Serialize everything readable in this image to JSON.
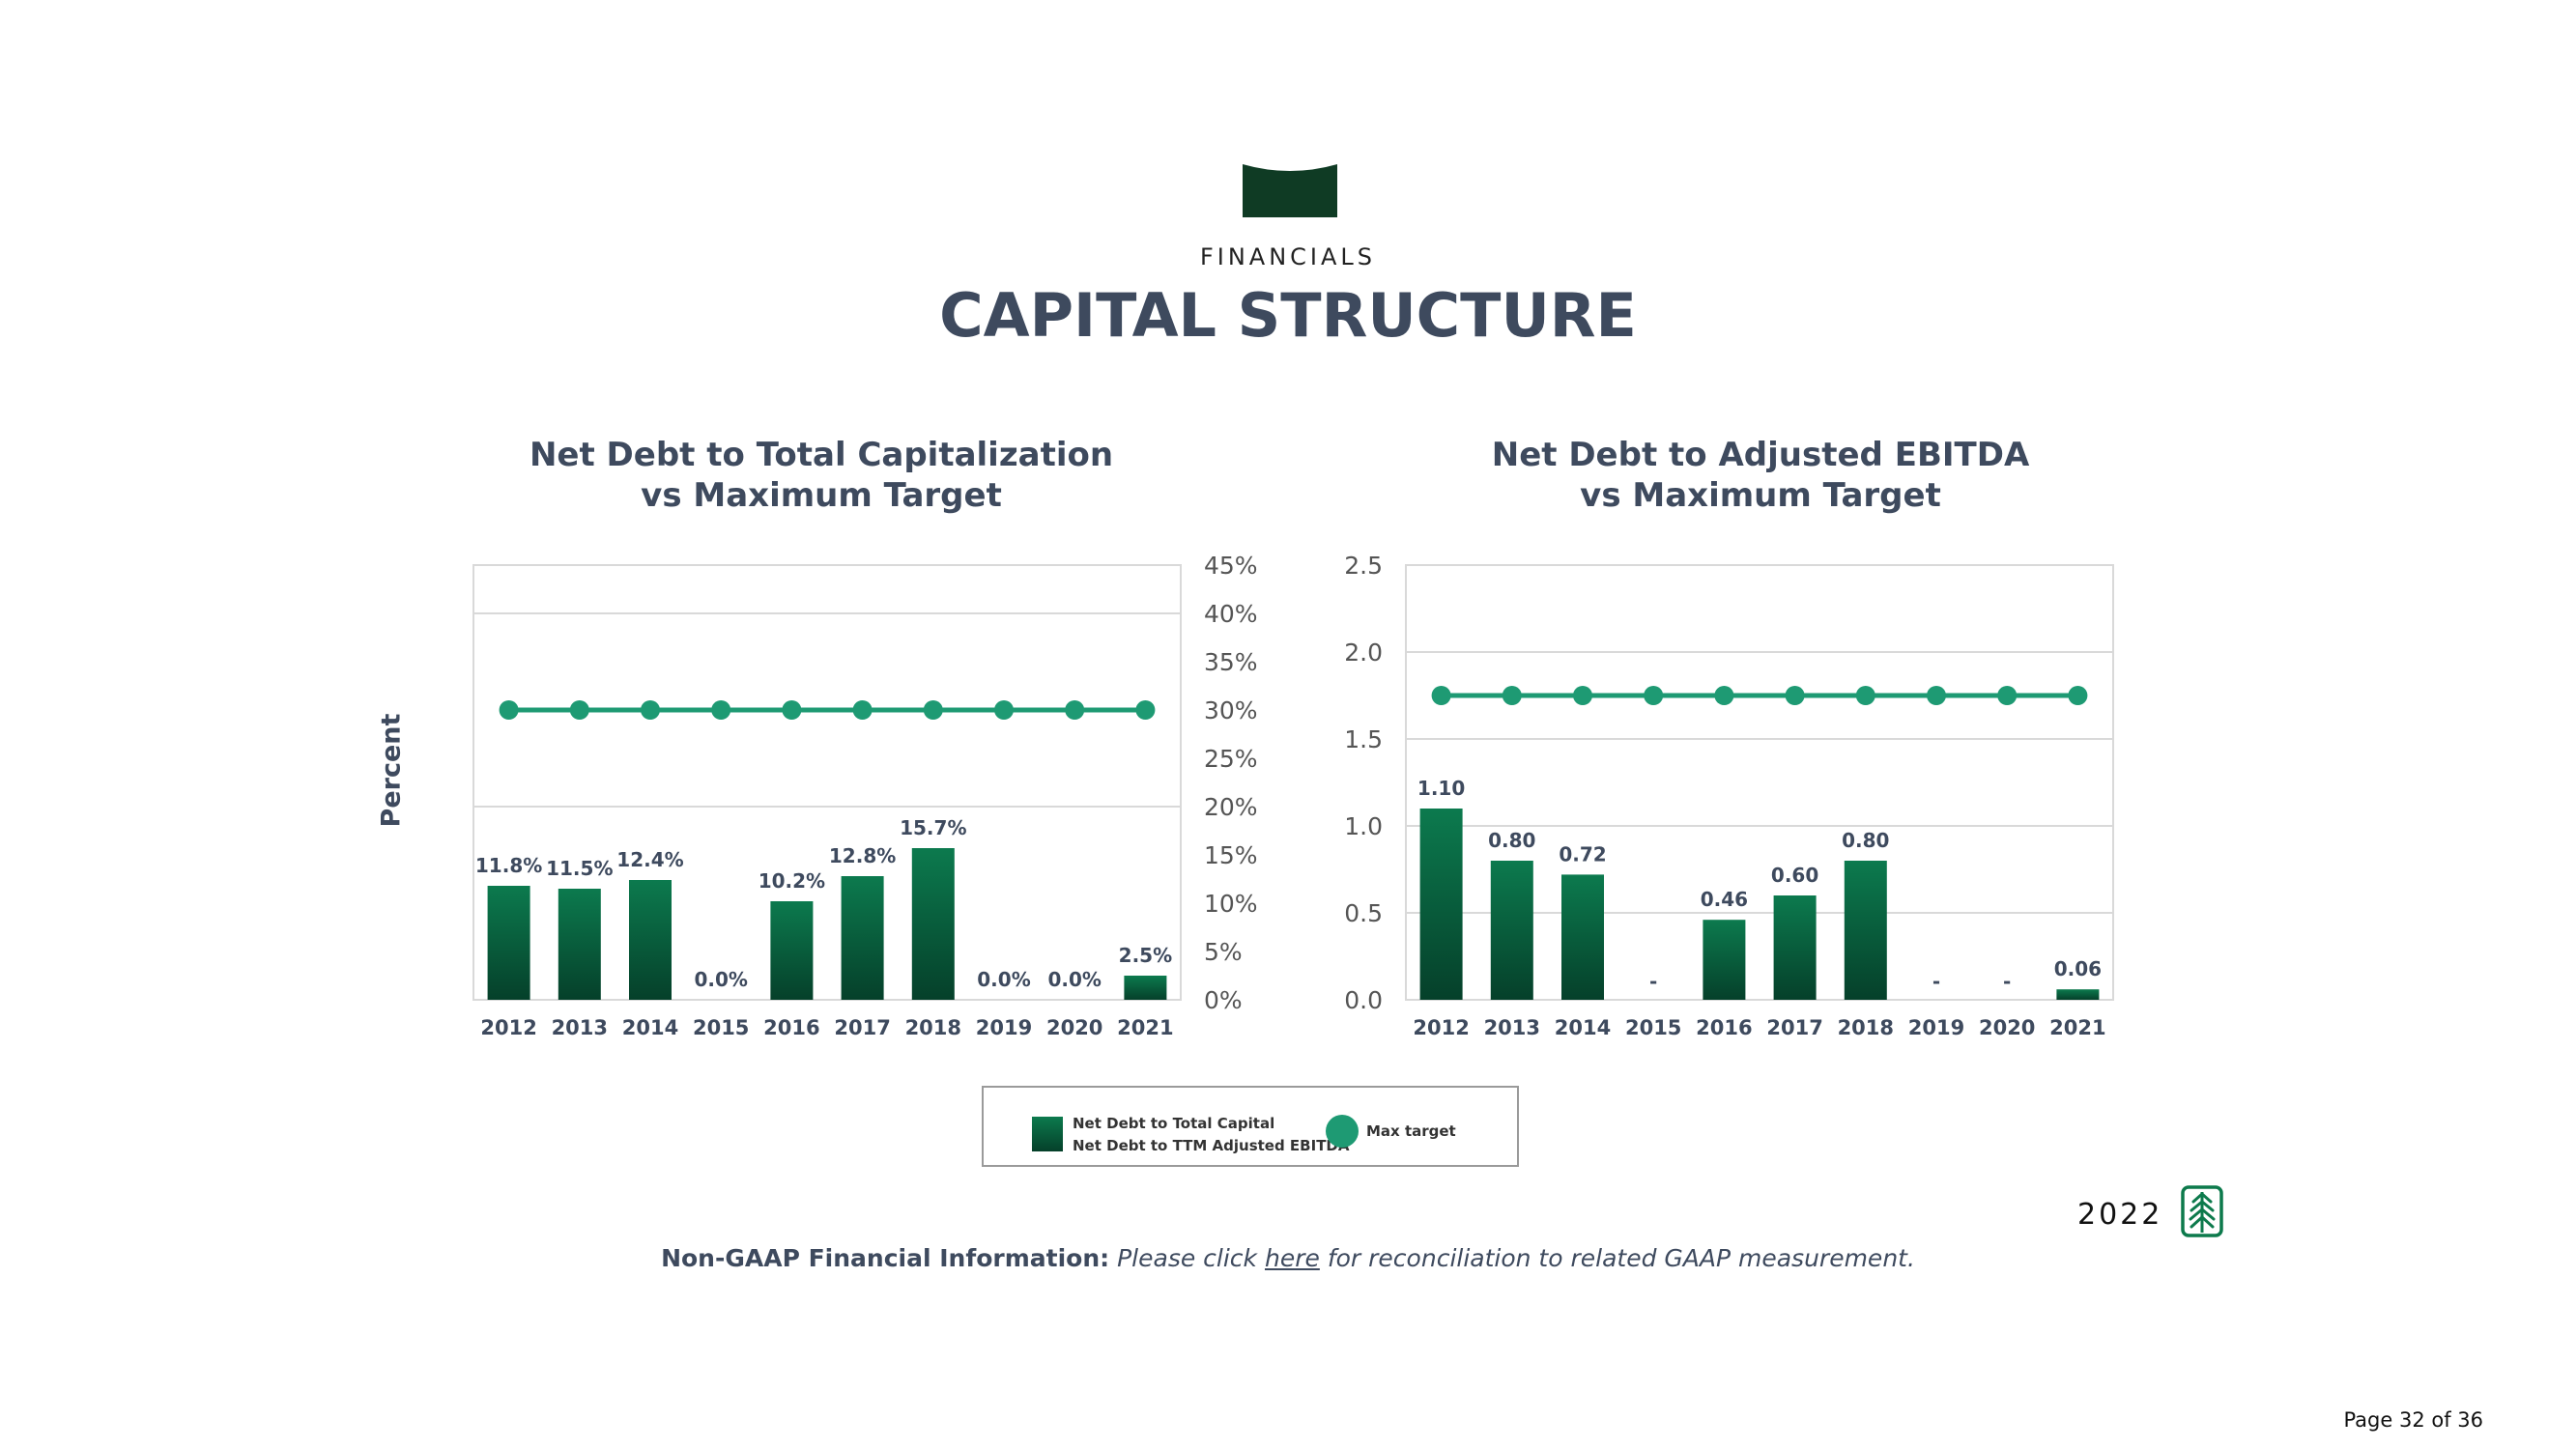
{
  "header": {
    "eyebrow": "FINANCIALS",
    "title": "CAPITAL STRUCTURE"
  },
  "y_side_label": "Percent",
  "charts": [
    {
      "title_line1": "Net Debt to Total Capitalization",
      "title_line2": "vs Maximum Target"
    },
    {
      "title_line1": "Net Debt to Adjusted EBITDA",
      "title_line2": "vs Maximum Target"
    }
  ],
  "chart_data": [
    {
      "type": "bar",
      "title": "Net Debt to Total Capitalization vs Maximum Target",
      "categories": [
        "2012",
        "2013",
        "2014",
        "2015",
        "2016",
        "2017",
        "2018",
        "2019",
        "2020",
        "2021"
      ],
      "series": [
        {
          "name": "Net Debt to Total Capital",
          "type": "bar",
          "values": [
            11.8,
            11.5,
            12.4,
            0.0,
            10.2,
            12.8,
            15.7,
            0.0,
            0.0,
            2.5
          ],
          "labels": [
            "11.8%",
            "11.5%",
            "12.4%",
            "0.0%",
            "10.2%",
            "12.8%",
            "15.7%",
            "0.0%",
            "0.0%",
            "2.5%"
          ]
        },
        {
          "name": "Max target",
          "type": "line",
          "values": [
            30,
            30,
            30,
            30,
            30,
            30,
            30,
            30,
            30,
            30
          ]
        }
      ],
      "ylim": [
        0,
        45
      ],
      "yticks": [
        0,
        5,
        10,
        15,
        20,
        25,
        30,
        35,
        40,
        45
      ],
      "ytick_labels": [
        "0%",
        "5%",
        "10%",
        "15%",
        "20%",
        "25%",
        "30%",
        "35%",
        "40%",
        "45%"
      ],
      "y_axis_side": "right",
      "gridlines": [
        20,
        40
      ]
    },
    {
      "type": "bar",
      "title": "Net Debt to Adjusted EBITDA vs Maximum Target",
      "categories": [
        "2012",
        "2013",
        "2014",
        "2015",
        "2016",
        "2017",
        "2018",
        "2019",
        "2020",
        "2021"
      ],
      "series": [
        {
          "name": "Net Debt to TTM Adjusted EBITDA",
          "type": "bar",
          "values": [
            1.1,
            0.8,
            0.72,
            0,
            0.46,
            0.6,
            0.8,
            0,
            0,
            0.06
          ],
          "labels": [
            "1.10",
            "0.80",
            "0.72",
            "-",
            "0.46",
            "0.60",
            "0.80",
            "-",
            "-",
            "0.06"
          ]
        },
        {
          "name": "Max target",
          "type": "line",
          "values": [
            1.75,
            1.75,
            1.75,
            1.75,
            1.75,
            1.75,
            1.75,
            1.75,
            1.75,
            1.75
          ]
        }
      ],
      "ylim": [
        0,
        2.5
      ],
      "yticks": [
        0,
        0.5,
        1.0,
        1.5,
        2.0,
        2.5
      ],
      "ytick_labels": [
        "0.0",
        "0.5",
        "1.0",
        "1.5",
        "2.0",
        "2.5"
      ],
      "y_axis_side": "left",
      "gridlines": [
        0.5,
        1.0,
        1.5,
        2.0
      ]
    }
  ],
  "legend": {
    "bar_label_1": "Net Debt to Total Capital",
    "bar_label_2": "Net Debt to TTM Adjusted EBITDA",
    "line_label": "Max target"
  },
  "colors": {
    "bar_top": "#0c7a4e",
    "bar_bottom": "#05402a",
    "target": "#1e9a73",
    "title": "#3e4a5e",
    "grid": "#d9d9d9"
  },
  "year_mark": "2022",
  "footnote": {
    "bold": "Non-GAAP Financial Information:",
    "pre": "Please click",
    "link": "here",
    "post": "for reconciliation to related GAAP measurement."
  },
  "page_number": "Page 32 of 36"
}
